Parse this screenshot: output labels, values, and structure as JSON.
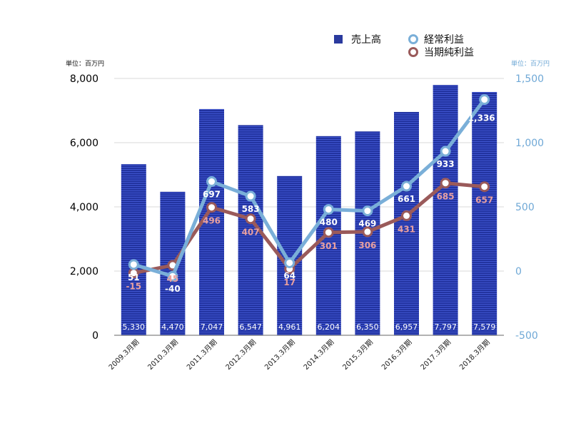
{
  "chart_data": {
    "type": "bar",
    "categories": [
      "2009.3月期",
      "2010.3月期",
      "2011.3月期",
      "2012.3月期",
      "2013.3月期",
      "2014.3月期",
      "2015.3月期",
      "2016.3月期",
      "2017.3月期",
      "2018.3月期"
    ],
    "series": [
      {
        "name": "売上高",
        "type": "bar",
        "axis": "left",
        "values": [
          5330,
          4470,
          7047,
          6547,
          4961,
          6204,
          6350,
          6957,
          7797,
          7579
        ],
        "labels": [
          "5,330",
          "4,470",
          "7,047",
          "6,547",
          "4,961",
          "6,204",
          "6,350",
          "6,957",
          "7,797",
          "7,579"
        ]
      },
      {
        "name": "経常利益",
        "type": "line",
        "axis": "right",
        "values": [
          51,
          -40,
          697,
          583,
          64,
          480,
          469,
          661,
          933,
          1336
        ],
        "labels": [
          "51",
          "-40",
          "697",
          "583",
          "64",
          "480",
          "469",
          "661",
          "933",
          "1,336"
        ]
      },
      {
        "name": "当期純利益",
        "type": "line",
        "axis": "right",
        "values": [
          -15,
          45,
          496,
          407,
          17,
          301,
          306,
          431,
          685,
          657
        ],
        "labels": [
          "-15",
          "45",
          "496",
          "407",
          "17",
          "301",
          "306",
          "431",
          "685",
          "657"
        ]
      }
    ],
    "y_left": {
      "unit": "単位：百万円",
      "ylim": [
        0,
        8000
      ],
      "ticks": [
        0,
        2000,
        4000,
        6000,
        8000
      ],
      "tick_labels": [
        "0",
        "2,000",
        "4,000",
        "6,000",
        "8,000"
      ]
    },
    "y_right": {
      "unit": "単位：百万円",
      "ylim": [
        -500,
        1500
      ],
      "ticks": [
        -500,
        0,
        500,
        1000,
        1500
      ],
      "tick_labels": [
        "-500",
        "0",
        "500",
        "1,000",
        "1,500"
      ]
    },
    "grid": true,
    "legend_position": "top-right"
  },
  "colors": {
    "bar": "#2a3a9e",
    "bar_stripe": "#3d54d6",
    "ordinary_profit": "#7aafd8",
    "net_income": "#9a5a5a",
    "right_axis_text": "#6fa8d6",
    "grid": "#d8d8d8"
  }
}
